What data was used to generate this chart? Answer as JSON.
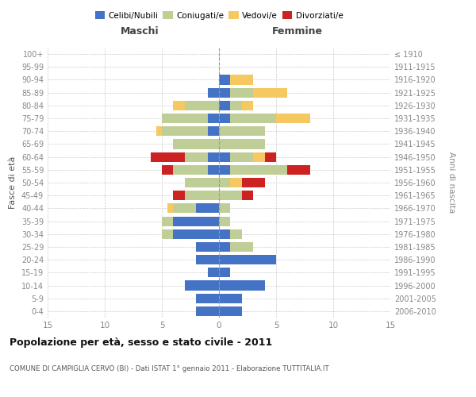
{
  "age_groups": [
    "100+",
    "95-99",
    "90-94",
    "85-89",
    "80-84",
    "75-79",
    "70-74",
    "65-69",
    "60-64",
    "55-59",
    "50-54",
    "45-49",
    "40-44",
    "35-39",
    "30-34",
    "25-29",
    "20-24",
    "15-19",
    "10-14",
    "5-9",
    "0-4"
  ],
  "birth_years": [
    "≤ 1910",
    "1911-1915",
    "1916-1920",
    "1921-1925",
    "1926-1930",
    "1931-1935",
    "1936-1940",
    "1941-1945",
    "1946-1950",
    "1951-1955",
    "1956-1960",
    "1961-1965",
    "1966-1970",
    "1971-1975",
    "1976-1980",
    "1981-1985",
    "1986-1990",
    "1991-1995",
    "1996-2000",
    "2001-2005",
    "2006-2010"
  ],
  "colors": {
    "celibi": "#4472C4",
    "coniugati": "#BFCD96",
    "vedovi": "#F5C862",
    "divorziati": "#CC2222"
  },
  "maschi": {
    "celibi": [
      0,
      0,
      0,
      1,
      0,
      1,
      1,
      0,
      1,
      1,
      0,
      0,
      2,
      4,
      4,
      2,
      2,
      1,
      3,
      2,
      2
    ],
    "coniugati": [
      0,
      0,
      0,
      0,
      3,
      4,
      4,
      4,
      2,
      3,
      3,
      3,
      2,
      1,
      1,
      0,
      0,
      0,
      0,
      0,
      0
    ],
    "vedovi": [
      0,
      0,
      0,
      0,
      1,
      0,
      0.5,
      0,
      0,
      0,
      0,
      0,
      0.5,
      0,
      0,
      0,
      0,
      0,
      0,
      0,
      0
    ],
    "divorziati": [
      0,
      0,
      0,
      0,
      0,
      0,
      0,
      0,
      3,
      1,
      0,
      1,
      0,
      0,
      0,
      0,
      0,
      0,
      0,
      0,
      0
    ]
  },
  "femmine": {
    "celibi": [
      0,
      0,
      1,
      1,
      1,
      1,
      0,
      0,
      1,
      1,
      0,
      0,
      0,
      0,
      1,
      1,
      5,
      1,
      4,
      2,
      2
    ],
    "coniugati": [
      0,
      0,
      0,
      2,
      1,
      4,
      4,
      4,
      2,
      5,
      1,
      2,
      1,
      1,
      1,
      2,
      0,
      0,
      0,
      0,
      0
    ],
    "vedovi": [
      0,
      0,
      2,
      3,
      1,
      3,
      0,
      0,
      1,
      0,
      1,
      0,
      0,
      0,
      0,
      0,
      0,
      0,
      0,
      0,
      0
    ],
    "divorziati": [
      0,
      0,
      0,
      0,
      0,
      0,
      0,
      0,
      1,
      2,
      2,
      1,
      0,
      0,
      0,
      0,
      0,
      0,
      0,
      0,
      0
    ]
  },
  "xlim": 15,
  "title": "Popolazione per età, sesso e stato civile - 2011",
  "subtitle": "COMUNE DI CAMPIGLIA CERVO (BI) - Dati ISTAT 1° gennaio 2011 - Elaborazione TUTTITALIA.IT",
  "xlabel_left": "Maschi",
  "xlabel_right": "Femmine",
  "ylabel_left": "Fasce di età",
  "ylabel_right": "Anni di nascita",
  "legend_labels": [
    "Celibi/Nubili",
    "Coniugati/e",
    "Vedovi/e",
    "Divorziati/e"
  ],
  "bg_color": "#ffffff",
  "grid_color": "#cccccc",
  "tick_color": "#888888"
}
